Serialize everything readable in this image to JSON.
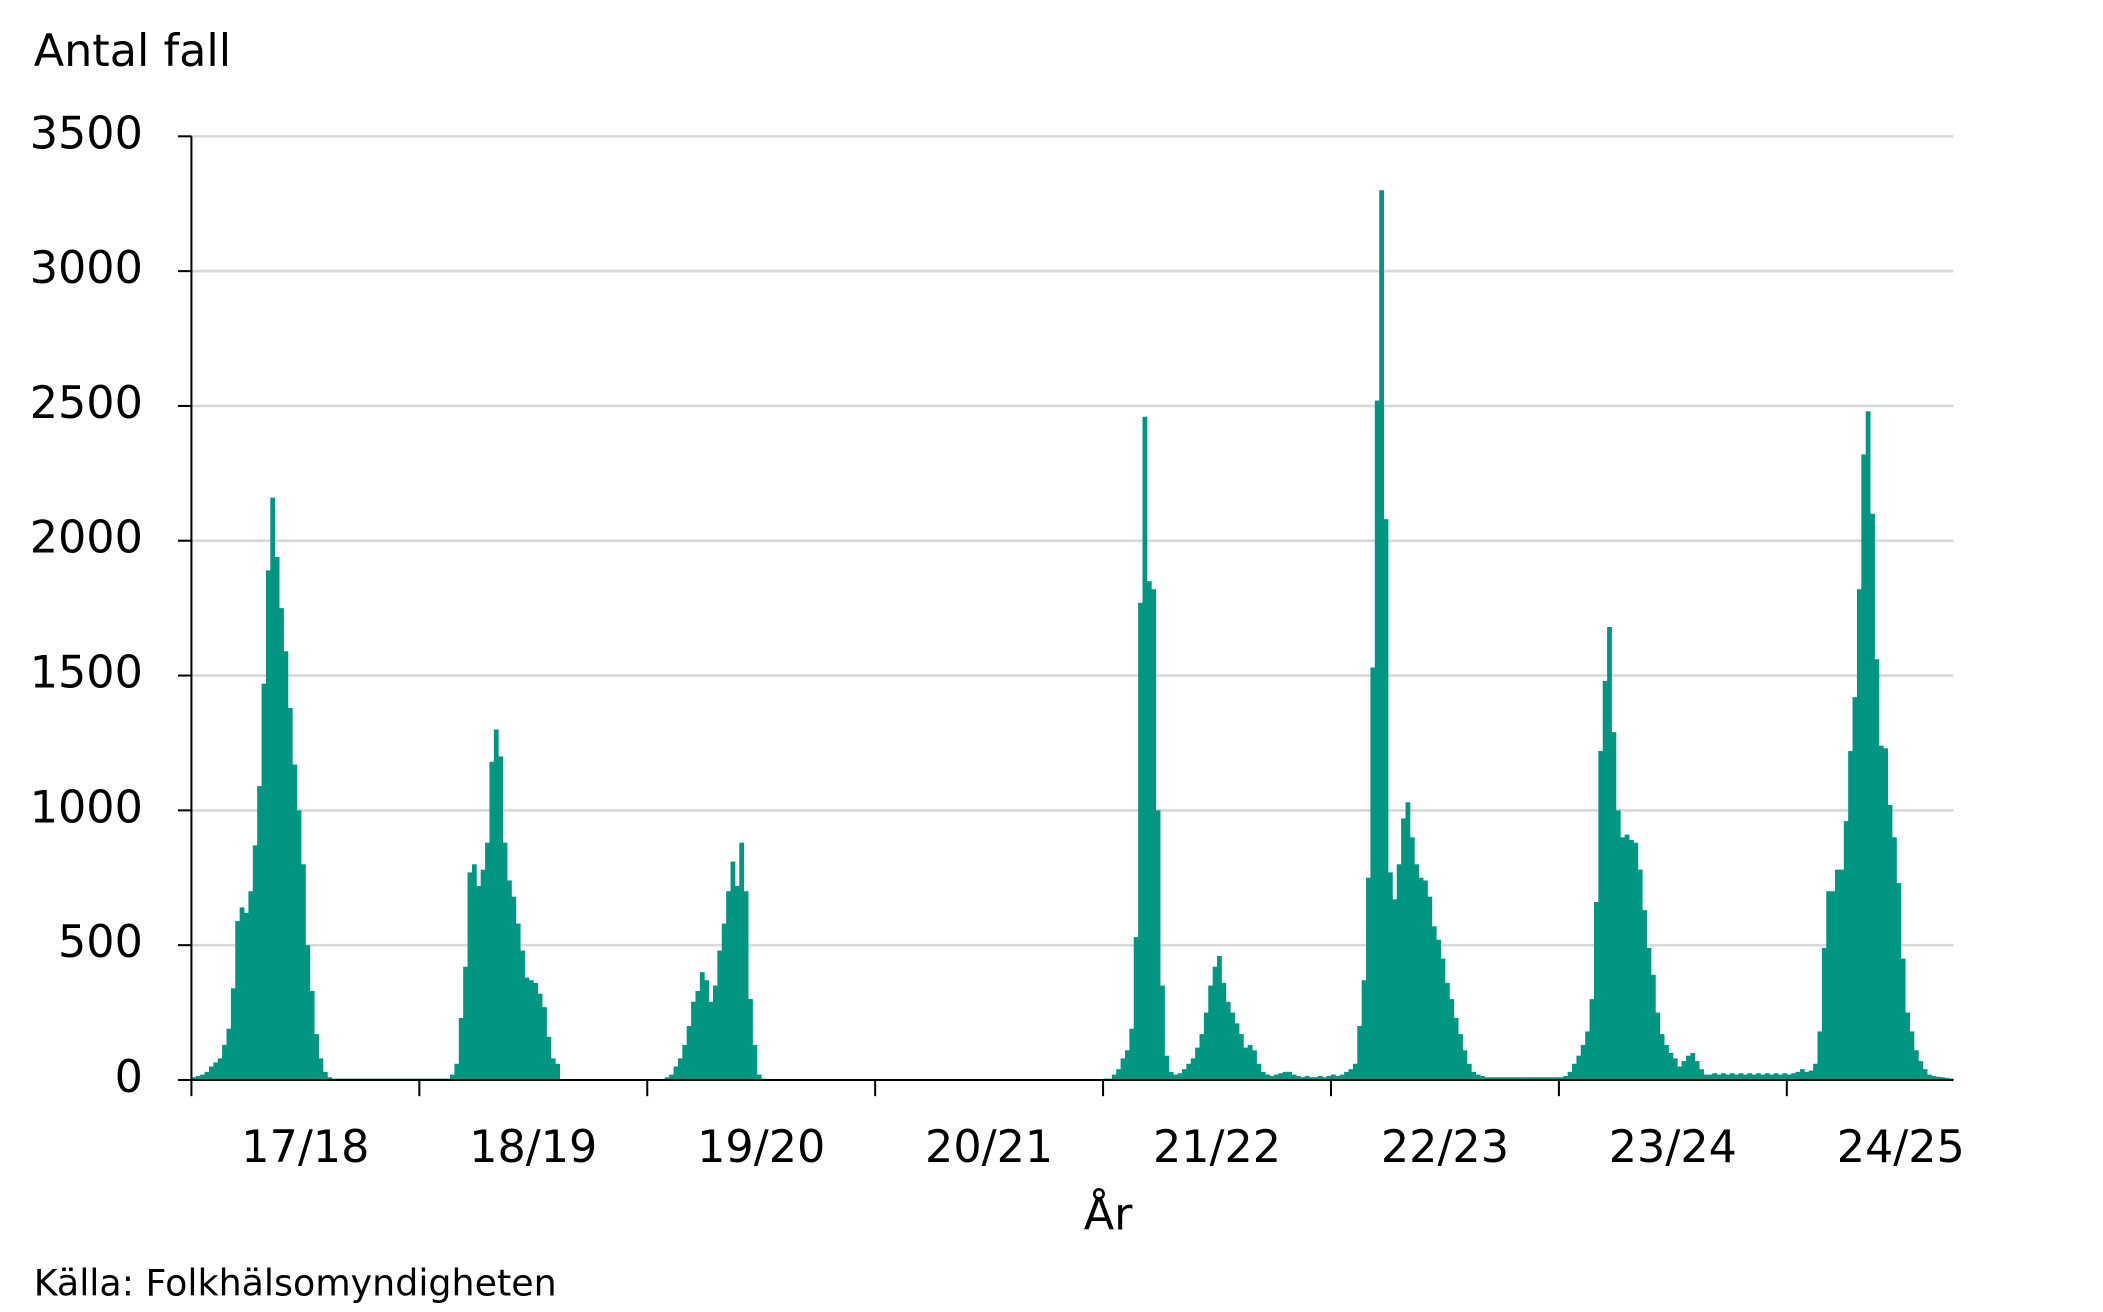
{
  "chart_data": {
    "type": "bar",
    "y_label": "Antal fall",
    "x_label": "År",
    "source": "Källa: Folkhälsomyndigheten",
    "color": "#009682",
    "grid": true,
    "ylim": [
      0,
      3500
    ],
    "yticks": [
      0,
      500,
      1000,
      1500,
      2000,
      2500,
      3000,
      3500
    ],
    "groups": [
      {
        "label": "17/18",
        "values": [
          10,
          15,
          20,
          30,
          50,
          65,
          80,
          130,
          190,
          340,
          590,
          640,
          620,
          700,
          870,
          1090,
          1470,
          1890,
          2160,
          1940,
          1750,
          1590,
          1380,
          1170,
          1000,
          800,
          500,
          330,
          170,
          80,
          30,
          10,
          5,
          5,
          5,
          5,
          5,
          5,
          5,
          5,
          5,
          5,
          5,
          5,
          5,
          5,
          5,
          5,
          5,
          5,
          5,
          5
        ]
      },
      {
        "label": "18/19",
        "values": [
          5,
          5,
          5,
          5,
          5,
          5,
          5,
          20,
          60,
          230,
          420,
          770,
          800,
          720,
          780,
          880,
          1180,
          1300,
          1200,
          880,
          740,
          680,
          580,
          480,
          380,
          370,
          360,
          320,
          270,
          160,
          80,
          60,
          0,
          0,
          0,
          0,
          0,
          0,
          0,
          0,
          0,
          0,
          0,
          0,
          0,
          0,
          0,
          0,
          0,
          0,
          0,
          0
        ]
      },
      {
        "label": "19/20",
        "values": [
          0,
          0,
          0,
          0,
          10,
          20,
          50,
          80,
          130,
          200,
          290,
          330,
          400,
          370,
          290,
          350,
          480,
          580,
          700,
          810,
          720,
          880,
          700,
          300,
          130,
          20,
          5,
          3,
          3,
          3,
          3,
          3,
          3,
          3,
          3,
          3,
          3,
          3,
          3,
          3,
          3,
          3,
          3,
          3,
          3,
          3,
          3,
          3,
          3,
          3,
          3,
          3
        ]
      },
      {
        "label": "20/21",
        "values": [
          2,
          2,
          2,
          2,
          2,
          2,
          2,
          2,
          2,
          2,
          2,
          2,
          2,
          2,
          2,
          2,
          2,
          2,
          2,
          2,
          2,
          2,
          2,
          2,
          2,
          2,
          2,
          2,
          2,
          2,
          2,
          2,
          2,
          2,
          2,
          2,
          2,
          2,
          2,
          2,
          2,
          2,
          2,
          2,
          2,
          2,
          2,
          2,
          2,
          2,
          2,
          2
        ]
      },
      {
        "label": "21/22",
        "values": [
          5,
          5,
          20,
          40,
          80,
          110,
          190,
          530,
          1770,
          2460,
          1850,
          1820,
          1000,
          350,
          90,
          30,
          20,
          25,
          40,
          60,
          80,
          120,
          170,
          250,
          350,
          420,
          460,
          360,
          290,
          250,
          210,
          170,
          120,
          130,
          110,
          60,
          30,
          20,
          15,
          20,
          25,
          30,
          30,
          20,
          15,
          10,
          15,
          10,
          10,
          15,
          10,
          15
        ]
      },
      {
        "label": "22/23",
        "values": [
          20,
          15,
          20,
          30,
          40,
          60,
          200,
          370,
          750,
          1530,
          2520,
          3300,
          2080,
          770,
          670,
          800,
          970,
          1030,
          900,
          800,
          750,
          740,
          680,
          570,
          520,
          450,
          360,
          300,
          230,
          170,
          110,
          60,
          30,
          20,
          15,
          10,
          10,
          10,
          10,
          10,
          10,
          10,
          10,
          10,
          10,
          10,
          10,
          10,
          10,
          10,
          10,
          10
        ]
      },
      {
        "label": "23/24",
        "values": [
          10,
          15,
          30,
          60,
          90,
          130,
          180,
          300,
          660,
          1220,
          1480,
          1680,
          1290,
          1000,
          900,
          910,
          890,
          880,
          780,
          630,
          490,
          390,
          250,
          170,
          130,
          100,
          80,
          50,
          70,
          90,
          100,
          70,
          40,
          20,
          20,
          25,
          20,
          25,
          20,
          25,
          20,
          25,
          20,
          25,
          20,
          25,
          20,
          25,
          20,
          25,
          20,
          25
        ]
      },
      {
        "label": "24/25",
        "values": [
          20,
          25,
          30,
          40,
          30,
          35,
          60,
          180,
          490,
          700,
          700,
          780,
          780,
          960,
          1220,
          1420,
          1820,
          2320,
          2480,
          2100,
          1560,
          1240,
          1230,
          1020,
          900,
          730,
          450,
          250,
          180,
          110,
          70,
          40,
          20,
          15,
          12,
          10,
          8,
          5
        ]
      }
    ]
  }
}
